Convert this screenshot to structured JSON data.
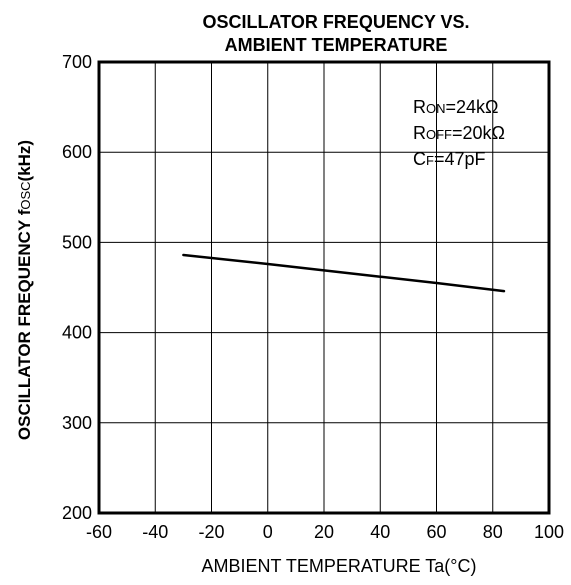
{
  "chart_data": {
    "type": "line",
    "title_lines": [
      "OSCILLATOR FREQUENCY VS.",
      "AMBIENT TEMPERATURE"
    ],
    "xlabel": "AMBIENT TEMPERATURE Ta(°C)",
    "ylabel": {
      "main": "OSCILLATOR FREQUENCY f",
      "sub": "OSC",
      "suffix": "(kHz)"
    },
    "xlim": [
      -60,
      100
    ],
    "ylim": [
      200,
      700
    ],
    "xticks": [
      -60,
      -40,
      -20,
      0,
      20,
      40,
      60,
      80,
      100
    ],
    "yticks": [
      200,
      300,
      400,
      500,
      600,
      700
    ],
    "xtick_labels": [
      "-60",
      "-40",
      "-20",
      "0",
      "20",
      "40",
      "60",
      "80",
      "100"
    ],
    "ytick_labels": [
      "200",
      "300",
      "400",
      "500",
      "600",
      "700"
    ],
    "grid": true,
    "annotations": [
      {
        "main": "R",
        "sub": "ON",
        "rest": "=24kΩ"
      },
      {
        "main": "R",
        "sub": "OFF",
        "rest": "=20kΩ"
      },
      {
        "main": "C",
        "sub": "F",
        "rest": "=47pF"
      }
    ],
    "series": [
      {
        "x": [
          -30,
          0,
          20,
          40,
          60,
          84
        ],
        "y": [
          486,
          476,
          469,
          462,
          455,
          446
        ]
      }
    ],
    "colors": {
      "line": "#000000",
      "grid": "#000000",
      "background": "#ffffff"
    }
  }
}
